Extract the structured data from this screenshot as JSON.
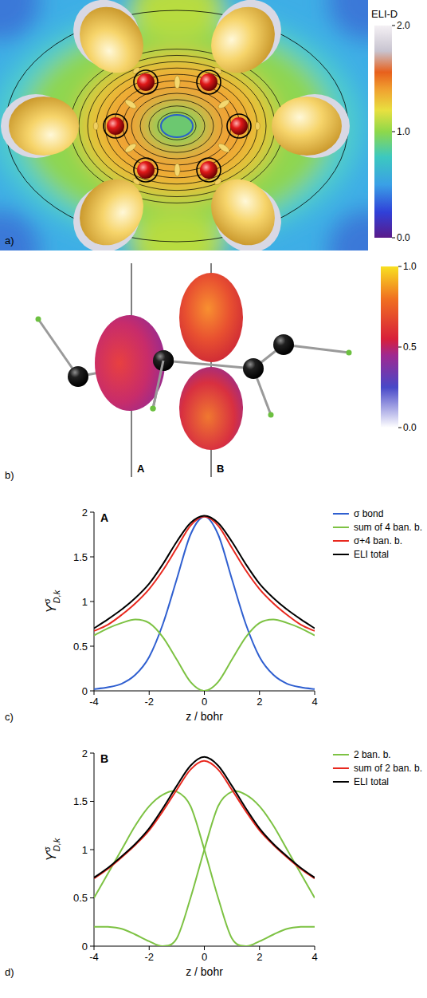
{
  "figure": {
    "panel_a": {
      "panel_label": "a)",
      "colorbar": {
        "title": "ELI-D",
        "range": [
          0,
          2
        ],
        "ticks": [
          {
            "value": 0,
            "label": "0.0"
          },
          {
            "value": 1,
            "label": "1.0"
          },
          {
            "value": 2,
            "label": "2.0"
          }
        ]
      }
    },
    "panel_b": {
      "panel_label": "b)",
      "axis_labels": [
        "A",
        "B"
      ],
      "colorbar": {
        "range": [
          0,
          1
        ],
        "ticks": [
          {
            "value": 0,
            "label": "0.0"
          },
          {
            "value": 0.5,
            "label": "0.5"
          },
          {
            "value": 1,
            "label": "1.0"
          }
        ]
      }
    }
  },
  "chart_data": [
    {
      "type": "line",
      "title": "A",
      "panel_label": "c)",
      "x_label": "z / bohr",
      "y_label": {
        "symbol": "ϒ",
        "superscript": "σ",
        "subscript": "D,k"
      },
      "x": [
        -4,
        -3.5,
        -3,
        -2.5,
        -2,
        -1.5,
        -1,
        -0.5,
        0,
        0.5,
        1,
        1.5,
        2,
        2.5,
        3,
        3.5,
        4
      ],
      "series": [
        {
          "name": "σ bond",
          "color": "#2f5fd0",
          "values": [
            0.02,
            0.04,
            0.08,
            0.18,
            0.38,
            0.75,
            1.25,
            1.75,
            1.95,
            1.75,
            1.25,
            0.75,
            0.38,
            0.18,
            0.08,
            0.04,
            0.02
          ]
        },
        {
          "name": "sum of 4 ban. b.",
          "color": "#7dc243",
          "values": [
            0.62,
            0.7,
            0.76,
            0.8,
            0.76,
            0.6,
            0.35,
            0.1,
            0,
            0.1,
            0.35,
            0.6,
            0.76,
            0.8,
            0.76,
            0.7,
            0.62
          ]
        },
        {
          "name": "σ+4 ban. b.",
          "color": "#e8281e",
          "values": [
            0.67,
            0.74,
            0.85,
            0.98,
            1.14,
            1.35,
            1.6,
            1.85,
            1.95,
            1.85,
            1.6,
            1.35,
            1.14,
            0.98,
            0.85,
            0.74,
            0.67
          ]
        },
        {
          "name": "ELI total",
          "color": "#000000",
          "values": [
            0.7,
            0.8,
            0.91,
            1.04,
            1.2,
            1.42,
            1.67,
            1.88,
            1.96,
            1.88,
            1.67,
            1.42,
            1.2,
            1.04,
            0.91,
            0.8,
            0.7
          ]
        }
      ],
      "xlim": [
        -4,
        4
      ],
      "xticks": [
        -4,
        -2,
        0,
        2,
        4
      ],
      "ylim": [
        0,
        2
      ],
      "yticks": [
        0,
        0.5,
        1,
        1.5,
        2
      ],
      "legend": "right"
    },
    {
      "type": "line",
      "title": "B",
      "panel_label": "d)",
      "x_label": "z / bohr",
      "y_label": {
        "symbol": "ϒ",
        "superscript": "σ",
        "subscript": "D,k"
      },
      "x": [
        -4,
        -3.5,
        -3,
        -2.5,
        -2,
        -1.5,
        -1,
        -0.5,
        0,
        0.5,
        1,
        1.5,
        2,
        2.5,
        3,
        3.5,
        4
      ],
      "series": [
        {
          "name": "2 ban. b.",
          "color": "#7dc243",
          "values": [
            0.5,
            0.75,
            1.0,
            1.25,
            1.45,
            1.57,
            1.6,
            1.45,
            1.0,
            0.5,
            0.08,
            0,
            0.05,
            0.12,
            0.18,
            0.2,
            0.2
          ]
        },
        {
          "color": "#7dc243",
          "values": [
            0.2,
            0.2,
            0.18,
            0.12,
            0.05,
            0,
            0.08,
            0.5,
            1.0,
            1.45,
            1.6,
            1.57,
            1.45,
            1.25,
            1.0,
            0.75,
            0.5
          ]
        },
        {
          "name": "sum of 2 ban. b.",
          "color": "#e8281e",
          "values": [
            0.7,
            0.8,
            0.92,
            1.05,
            1.2,
            1.4,
            1.62,
            1.83,
            1.92,
            1.83,
            1.62,
            1.4,
            1.2,
            1.05,
            0.92,
            0.8,
            0.7
          ]
        },
        {
          "name": "ELI total",
          "color": "#000000",
          "values": [
            0.71,
            0.81,
            0.93,
            1.06,
            1.22,
            1.43,
            1.66,
            1.87,
            1.96,
            1.87,
            1.66,
            1.43,
            1.22,
            1.06,
            0.93,
            0.81,
            0.71
          ]
        }
      ],
      "xlim": [
        -4,
        4
      ],
      "xticks": [
        -4,
        -2,
        0,
        2,
        4
      ],
      "ylim": [
        0,
        2
      ],
      "yticks": [
        0,
        0.5,
        1,
        1.5,
        2
      ],
      "legend": "right"
    }
  ]
}
